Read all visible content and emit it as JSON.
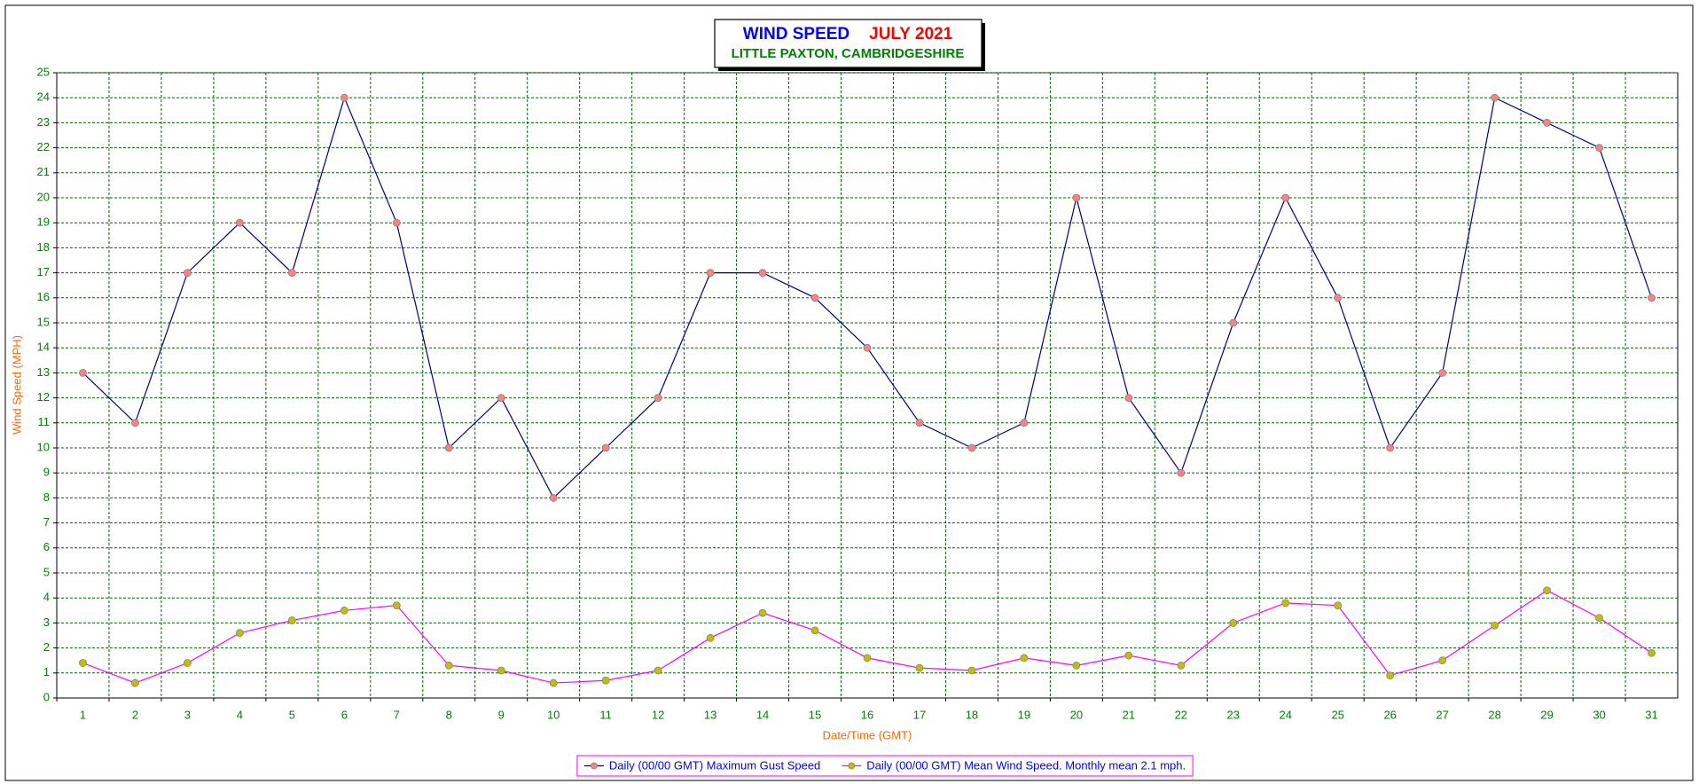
{
  "chart_data": {
    "type": "line",
    "title": "WIND SPEED",
    "period": "JULY 2021",
    "subtitle": "LITTLE PAXTON, CAMBRIDGESHIRE",
    "x_label": "Date/Time (GMT)",
    "y_label": "Wind Speed (MPH)",
    "categories": [
      "1",
      "2",
      "3",
      "4",
      "5",
      "6",
      "7",
      "8",
      "9",
      "10",
      "11",
      "12",
      "13",
      "14",
      "15",
      "16",
      "17",
      "18",
      "19",
      "20",
      "21",
      "22",
      "23",
      "24",
      "25",
      "26",
      "27",
      "28",
      "29",
      "30",
      "31"
    ],
    "series": [
      {
        "name": "Daily (00/00 GMT) Maximum Gust Speed",
        "color": "#000080",
        "marker_color": "#ff8080",
        "values": [
          13,
          11,
          17,
          19,
          17,
          24,
          19,
          10,
          12,
          8,
          10,
          12,
          17,
          17,
          16,
          14,
          11,
          10,
          11,
          20,
          12,
          9,
          15,
          20,
          16,
          10,
          13,
          24,
          23,
          22,
          16
        ]
      },
      {
        "name": "Daily (00/00 GMT) Mean Wind Speed. Monthly mean 2.1 mph.",
        "color": "#ff00ff",
        "marker_color": "#c0c000",
        "values": [
          1.4,
          0.6,
          1.4,
          2.6,
          3.1,
          3.5,
          3.7,
          1.3,
          1.1,
          0.6,
          0.7,
          1.1,
          2.4,
          3.4,
          2.7,
          1.6,
          1.2,
          1.1,
          1.6,
          1.3,
          1.7,
          1.3,
          3.0,
          3.8,
          3.7,
          0.9,
          1.5,
          2.9,
          4.3,
          3.2,
          1.8
        ]
      }
    ],
    "ylim": [
      0,
      25
    ],
    "yticks": [
      0,
      1,
      2,
      3,
      4,
      5,
      6,
      7,
      8,
      9,
      10,
      11,
      12,
      13,
      14,
      15,
      16,
      17,
      18,
      19,
      20,
      21,
      22,
      23,
      24,
      25
    ],
    "grid": true,
    "legend": "bottom"
  }
}
